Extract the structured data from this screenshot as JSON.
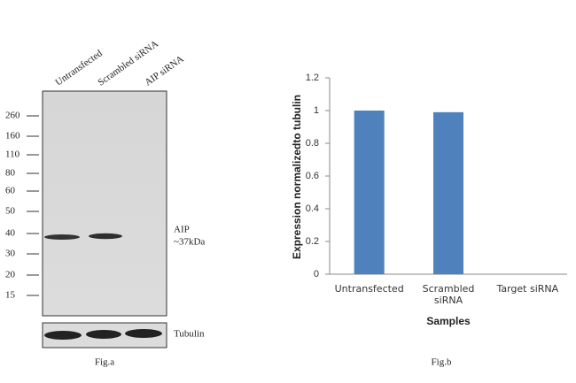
{
  "blot": {
    "lanes": [
      "Untransfected",
      "Scrambled siRNA",
      "AIP siRNA"
    ],
    "markers": [
      "260",
      "160",
      "110",
      "80",
      "60",
      "50",
      "40",
      "30",
      "20",
      "15"
    ],
    "band_label": "AIP",
    "band_size": "~37kDa",
    "loading_control": "Tubulin",
    "caption": "Fig.a"
  },
  "chart_data": {
    "type": "bar",
    "caption": "Fig.b",
    "x_label": "Samples",
    "y_label": "Expression normalizedto tubulin",
    "categories": [
      "Untransfected",
      "Scrambled siRNA",
      "Target siRNA"
    ],
    "values": [
      1,
      0.99,
      0
    ],
    "color": "#4f81bd",
    "ylim": [
      0,
      1.2
    ],
    "yticks": [
      0,
      0.2,
      0.4,
      0.6,
      0.8,
      1,
      1.2
    ]
  }
}
